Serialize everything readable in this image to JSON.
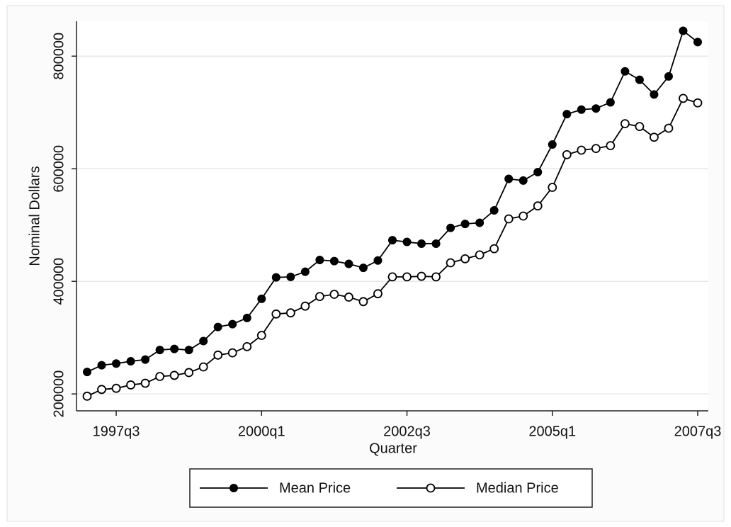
{
  "chart_data": {
    "type": "line",
    "xlabel": "Quarter",
    "ylabel": "Nominal Dollars",
    "categories": [
      null,
      null,
      "1997q3",
      null,
      null,
      null,
      null,
      null,
      null,
      null,
      null,
      null,
      "2000q1",
      null,
      null,
      null,
      null,
      null,
      null,
      null,
      null,
      null,
      "2002q3",
      null,
      null,
      null,
      null,
      null,
      null,
      null,
      null,
      null,
      "2005q1",
      null,
      null,
      null,
      null,
      null,
      null,
      null,
      null,
      null,
      "2007q3"
    ],
    "series": [
      {
        "name": "Mean Price",
        "color": "#000000",
        "marker": "filled",
        "values": [
          239000,
          251000,
          254000,
          258000,
          261000,
          278000,
          280000,
          278000,
          294000,
          319000,
          324000,
          335000,
          369000,
          407000,
          408000,
          417000,
          438000,
          436000,
          431000,
          424000,
          437000,
          473000,
          470000,
          467000,
          467000,
          495000,
          502000,
          504000,
          526000,
          582000,
          579000,
          594000,
          643000,
          697000,
          705000,
          707000,
          718000,
          773000,
          758000,
          732000,
          764000,
          845000,
          825000
        ]
      },
      {
        "name": "Median Price",
        "color": "#000000",
        "marker": "hollow",
        "values": [
          196000,
          208000,
          210000,
          216000,
          219000,
          231000,
          233000,
          238000,
          248000,
          269000,
          273000,
          284000,
          304000,
          342000,
          344000,
          356000,
          373000,
          377000,
          372000,
          364000,
          378000,
          408000,
          408000,
          409000,
          408000,
          433000,
          440000,
          447000,
          458000,
          511000,
          516000,
          534000,
          567000,
          625000,
          633000,
          636000,
          641000,
          680000,
          675000,
          656000,
          672000,
          725000,
          717000
        ]
      }
    ],
    "ylim": [
      170000,
      862000
    ],
    "yticks": [
      200000,
      400000,
      600000,
      800000
    ],
    "grid": true
  }
}
